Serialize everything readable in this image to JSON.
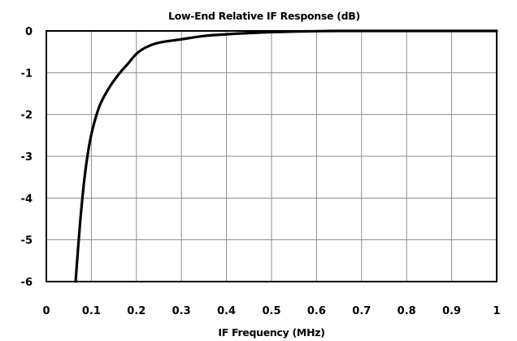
{
  "chart_data": {
    "type": "line",
    "title": "Low-End Relative IF Response (dB)",
    "xlabel": "IF Frequency (MHz)",
    "ylabel": "",
    "xlim": [
      0,
      1
    ],
    "ylim": [
      -6,
      0
    ],
    "xticks": [
      0,
      0.1,
      0.2,
      0.3,
      0.4,
      0.5,
      0.6,
      0.7,
      0.8,
      0.9,
      1
    ],
    "xtick_labels": [
      "0",
      "0.1",
      "0.2",
      "0.3",
      "0.4",
      "0.5",
      "0.6",
      "0.7",
      "0.8",
      "0.9",
      "1"
    ],
    "yticks": [
      0,
      -1,
      -2,
      -3,
      -4,
      -5,
      -6
    ],
    "ytick_labels": [
      "0",
      "-1",
      "-2",
      "-3",
      "-4",
      "-5",
      "-6"
    ],
    "grid": true,
    "legend": "none",
    "series": [
      {
        "color": "#000000",
        "x": [
          0.065,
          0.075,
          0.085,
          0.095,
          0.105,
          0.12,
          0.14,
          0.16,
          0.18,
          0.2,
          0.22,
          0.25,
          0.3,
          0.35,
          0.4,
          0.45,
          0.5,
          0.55,
          0.6,
          0.65,
          0.7,
          0.8,
          0.9,
          1.0
        ],
        "y": [
          -6.0,
          -4.6,
          -3.5,
          -2.75,
          -2.25,
          -1.75,
          -1.35,
          -1.05,
          -0.8,
          -0.55,
          -0.4,
          -0.28,
          -0.2,
          -0.12,
          -0.08,
          -0.05,
          -0.03,
          -0.015,
          -0.005,
          0,
          0,
          0,
          0,
          0
        ]
      }
    ]
  }
}
